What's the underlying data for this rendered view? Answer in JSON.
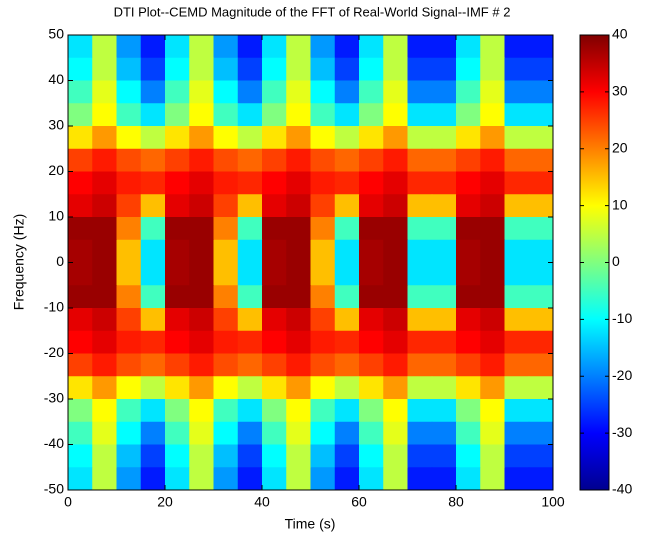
{
  "chart_data": {
    "type": "heatmap",
    "title": "DTI Plot--CEMD Magnitude of the FFT of Real-World Signal--IMF # 2",
    "x_label": "Time (s)",
    "y_label": "Frequency (Hz)",
    "colormap": "jet",
    "xlim": [
      0,
      100
    ],
    "xticks": [
      0,
      20,
      40,
      60,
      80,
      100
    ],
    "ylim": [
      -50,
      50
    ],
    "yticks": [
      -50,
      -40,
      -30,
      -20,
      -10,
      0,
      10,
      20,
      30,
      40,
      50
    ],
    "zlim": [
      -40,
      40
    ],
    "zticks": [
      -40,
      -30,
      -20,
      -10,
      0,
      10,
      20,
      30,
      40
    ],
    "x": [
      2.5,
      7.5,
      12.5,
      17.5,
      22.5,
      27.5,
      32.5,
      37.5,
      42.5,
      47.5,
      52.5,
      57.5,
      62.5,
      67.5,
      72.5,
      77.5,
      82.5,
      87.5,
      92.5,
      97.5
    ],
    "y": [
      47.5,
      42.5,
      37.5,
      32.5,
      27.5,
      22.5,
      17.5,
      12.5,
      7.5,
      2.5,
      -2.5,
      -7.5,
      -12.5,
      -17.5,
      -22.5,
      -27.5,
      -32.5,
      -37.5,
      -42.5,
      -47.5
    ],
    "z": [
      [
        -12,
        5,
        -18,
        -28,
        -12,
        5,
        -18,
        -28,
        -12,
        5,
        -18,
        -28,
        -12,
        5,
        -28,
        -28,
        -12,
        5,
        -28,
        -28
      ],
      [
        -10,
        5,
        -15,
        -25,
        -10,
        5,
        -15,
        -25,
        -10,
        5,
        -15,
        -25,
        -10,
        5,
        -25,
        -25,
        -10,
        5,
        -25,
        -25
      ],
      [
        -5,
        8,
        -10,
        -20,
        -5,
        8,
        -10,
        -20,
        -5,
        8,
        -10,
        -20,
        -5,
        8,
        -20,
        -20,
        -5,
        8,
        -20,
        -20
      ],
      [
        0,
        10,
        -5,
        -12,
        0,
        10,
        -5,
        -12,
        0,
        10,
        -5,
        -12,
        0,
        10,
        -12,
        -12,
        0,
        10,
        -12,
        -12
      ],
      [
        12,
        18,
        10,
        5,
        12,
        18,
        10,
        5,
        12,
        18,
        10,
        5,
        12,
        18,
        5,
        5,
        12,
        18,
        5,
        5
      ],
      [
        25,
        28,
        24,
        22,
        25,
        28,
        24,
        22,
        25,
        28,
        24,
        22,
        25,
        28,
        22,
        22,
        25,
        28,
        22,
        22
      ],
      [
        30,
        32,
        28,
        27,
        30,
        32,
        28,
        27,
        30,
        32,
        28,
        27,
        30,
        32,
        27,
        27,
        30,
        32,
        27,
        27
      ],
      [
        32,
        34,
        25,
        15,
        32,
        34,
        25,
        15,
        32,
        34,
        25,
        15,
        32,
        34,
        15,
        15,
        32,
        34,
        15,
        15
      ],
      [
        38,
        38,
        20,
        -5,
        38,
        38,
        20,
        -5,
        38,
        38,
        20,
        -5,
        38,
        38,
        -5,
        -5,
        38,
        38,
        -5,
        -5
      ],
      [
        37,
        38,
        15,
        -12,
        37,
        38,
        15,
        -12,
        37,
        38,
        15,
        -12,
        37,
        38,
        -12,
        -12,
        37,
        38,
        -12,
        -12
      ],
      [
        37,
        38,
        15,
        -12,
        37,
        38,
        15,
        -12,
        37,
        38,
        15,
        -12,
        37,
        38,
        -12,
        -12,
        37,
        38,
        -12,
        -12
      ],
      [
        38,
        38,
        20,
        -5,
        38,
        38,
        20,
        -5,
        38,
        38,
        20,
        -5,
        38,
        38,
        -5,
        -5,
        38,
        38,
        -5,
        -5
      ],
      [
        32,
        34,
        25,
        15,
        32,
        34,
        25,
        15,
        32,
        34,
        25,
        15,
        32,
        34,
        15,
        15,
        32,
        34,
        15,
        15
      ],
      [
        30,
        32,
        28,
        27,
        30,
        32,
        28,
        27,
        30,
        32,
        28,
        27,
        30,
        32,
        27,
        27,
        30,
        32,
        27,
        27
      ],
      [
        25,
        28,
        24,
        22,
        25,
        28,
        24,
        22,
        25,
        28,
        24,
        22,
        25,
        28,
        22,
        22,
        25,
        28,
        22,
        22
      ],
      [
        12,
        18,
        10,
        5,
        12,
        18,
        10,
        5,
        12,
        18,
        10,
        5,
        12,
        18,
        5,
        5,
        12,
        18,
        5,
        5
      ],
      [
        0,
        10,
        -5,
        -12,
        0,
        10,
        -5,
        -12,
        0,
        10,
        -5,
        -12,
        0,
        10,
        -12,
        -12,
        0,
        10,
        -12,
        -12
      ],
      [
        -5,
        8,
        -10,
        -20,
        -5,
        8,
        -10,
        -20,
        -5,
        8,
        -10,
        -20,
        -5,
        8,
        -20,
        -20,
        -5,
        8,
        -20,
        -20
      ],
      [
        -10,
        5,
        -15,
        -25,
        -10,
        5,
        -15,
        -25,
        -10,
        5,
        -15,
        -25,
        -10,
        5,
        -25,
        -25,
        -10,
        5,
        -25,
        -25
      ],
      [
        -12,
        5,
        -18,
        -28,
        -12,
        5,
        -18,
        -28,
        -12,
        5,
        -18,
        -28,
        -12,
        5,
        -28,
        -28,
        -12,
        5,
        -28,
        -28
      ]
    ]
  }
}
